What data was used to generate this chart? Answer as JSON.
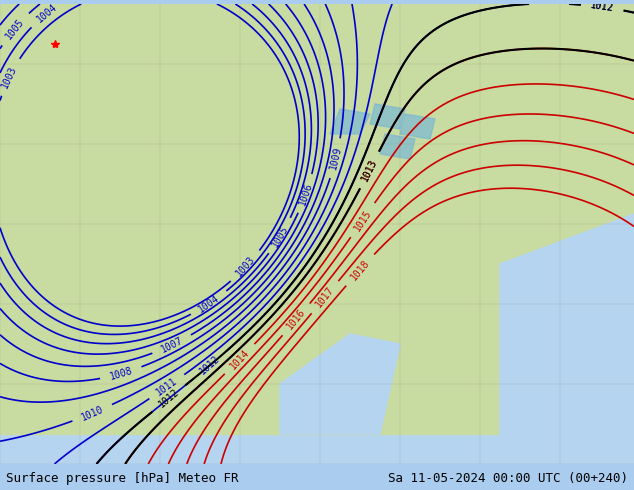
{
  "title_left": "Surface pressure [hPa] Meteo FR",
  "title_right": "Sa 11-05-2024 00:00 UTC (00+240)",
  "bg_color": "#c8e6c9",
  "land_color": "#b8d8a0",
  "ocean_color": "#d0e8f0",
  "isobar_color_red": "#cc0000",
  "isobar_color_blue": "#0000cc",
  "isobar_color_black": "#000000",
  "label_fontsize": 8,
  "title_fontsize": 9,
  "figsize": [
    6.34,
    4.9
  ],
  "dpi": 100
}
